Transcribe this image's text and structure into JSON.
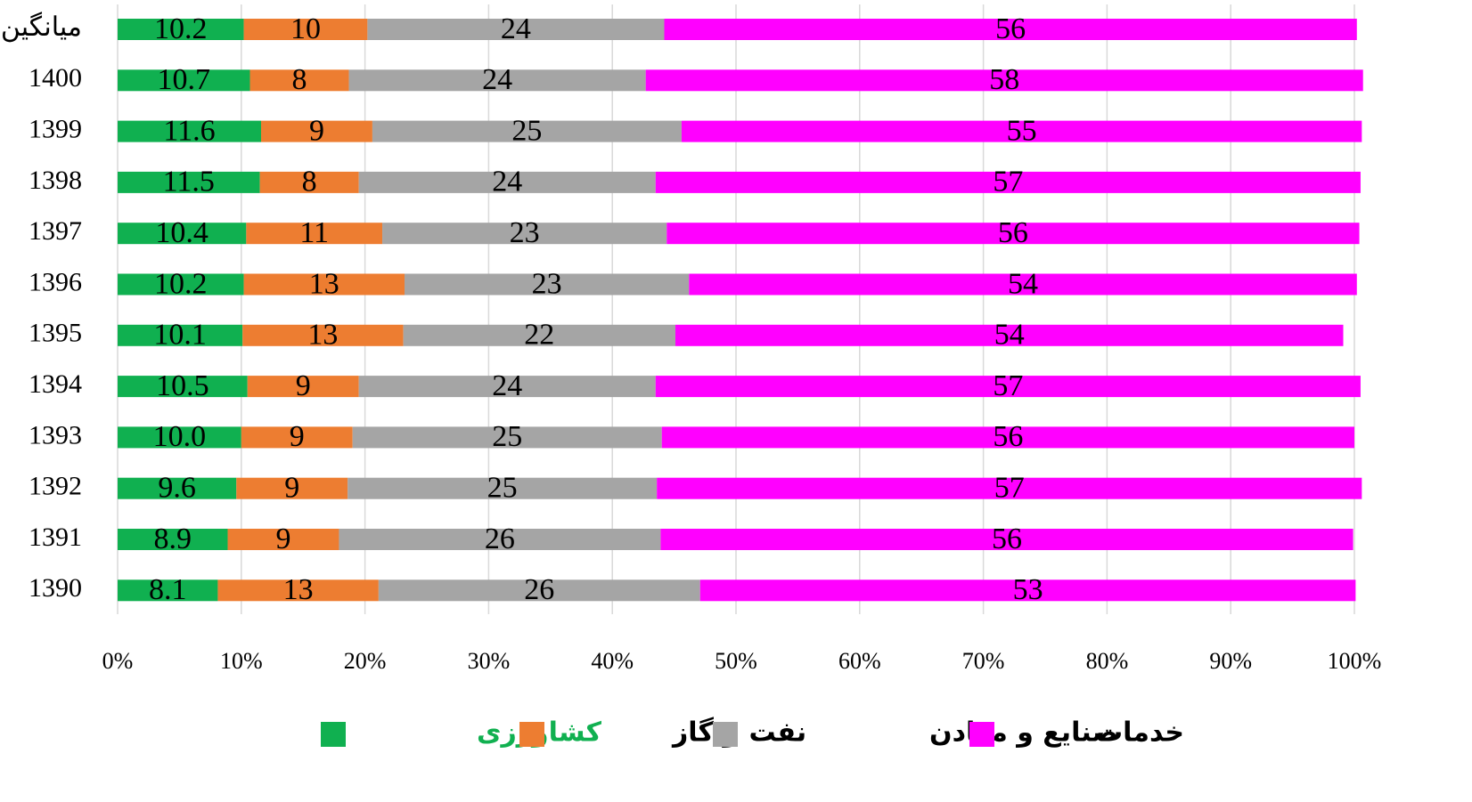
{
  "chart_data": {
    "type": "stacked_barh",
    "categories": [
      "میانگین",
      "1400",
      "1399",
      "1398",
      "1397",
      "1396",
      "1395",
      "1394",
      "1393",
      "1392",
      "1391",
      "1390"
    ],
    "series": [
      {
        "name": "کشاورزی",
        "color": "#10b050",
        "values": [
          10.2,
          10.7,
          11.6,
          11.5,
          10.4,
          10.2,
          10.1,
          10.5,
          10.0,
          9.6,
          8.9,
          8.1
        ],
        "value_labels": [
          "10.2",
          "10.7",
          "11.6",
          "11.5",
          "10.4",
          "10.2",
          "10.1",
          "10.5",
          "10.0",
          "9.6",
          "8.9",
          "8.1"
        ]
      },
      {
        "name": "نفت و گاز",
        "color": "#ed7d31",
        "values": [
          10,
          8,
          9,
          8,
          11,
          13,
          13,
          9,
          9,
          9,
          9,
          13
        ]
      },
      {
        "name": "صنایع و معادن",
        "color": "#a5a5a5",
        "values": [
          24,
          24,
          25,
          24,
          23,
          23,
          22,
          24,
          25,
          25,
          26,
          26
        ]
      },
      {
        "name": "خدمات",
        "color": "#ff00ff",
        "values": [
          56,
          58,
          55,
          57,
          56,
          54,
          54,
          57,
          56,
          57,
          56,
          53
        ]
      }
    ],
    "xlim": [
      0,
      100
    ],
    "xticks": [
      {
        "value": 0,
        "label": "0%"
      },
      {
        "value": 10,
        "label": "10%"
      },
      {
        "value": 20,
        "label": "20%"
      },
      {
        "value": 30,
        "label": "30%"
      },
      {
        "value": 40,
        "label": "40%"
      },
      {
        "value": 50,
        "label": "50%"
      },
      {
        "value": 60,
        "label": "60%"
      },
      {
        "value": 70,
        "label": "70%"
      },
      {
        "value": 80,
        "label": "80%"
      },
      {
        "value": 90,
        "label": "90%"
      },
      {
        "value": 100,
        "label": "100%"
      }
    ],
    "grid": true,
    "legend": "bottom"
  }
}
